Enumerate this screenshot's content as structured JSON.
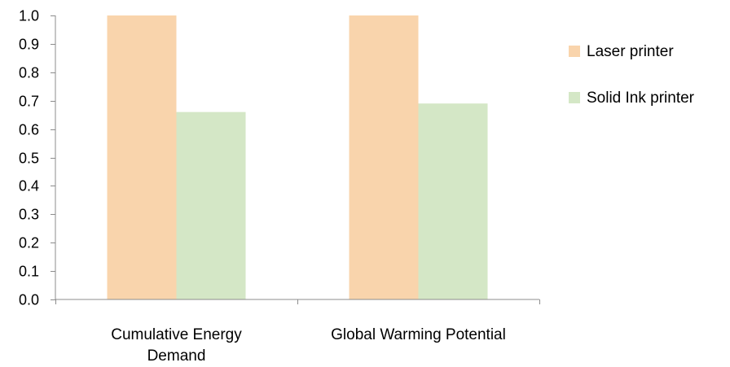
{
  "chart_data": {
    "type": "bar",
    "title": "",
    "xlabel": "",
    "ylabel": "",
    "categories": [
      [
        "Cumulative Energy",
        "Demand"
      ],
      [
        "Global Warming Potential"
      ]
    ],
    "series": [
      {
        "name": "Laser printer",
        "color": "#f9d4ac",
        "values": [
          1.0,
          1.0
        ]
      },
      {
        "name": "Solid Ink printer",
        "color": "#d4e7c6",
        "values": [
          0.66,
          0.69
        ]
      }
    ],
    "ylim": [
      0,
      1.0
    ],
    "yticks": [
      "0.0",
      "0.1",
      "0.2",
      "0.3",
      "0.4",
      "0.5",
      "0.6",
      "0.7",
      "0.8",
      "0.9",
      "1.0"
    ],
    "grid": false,
    "legend_position": "right"
  }
}
